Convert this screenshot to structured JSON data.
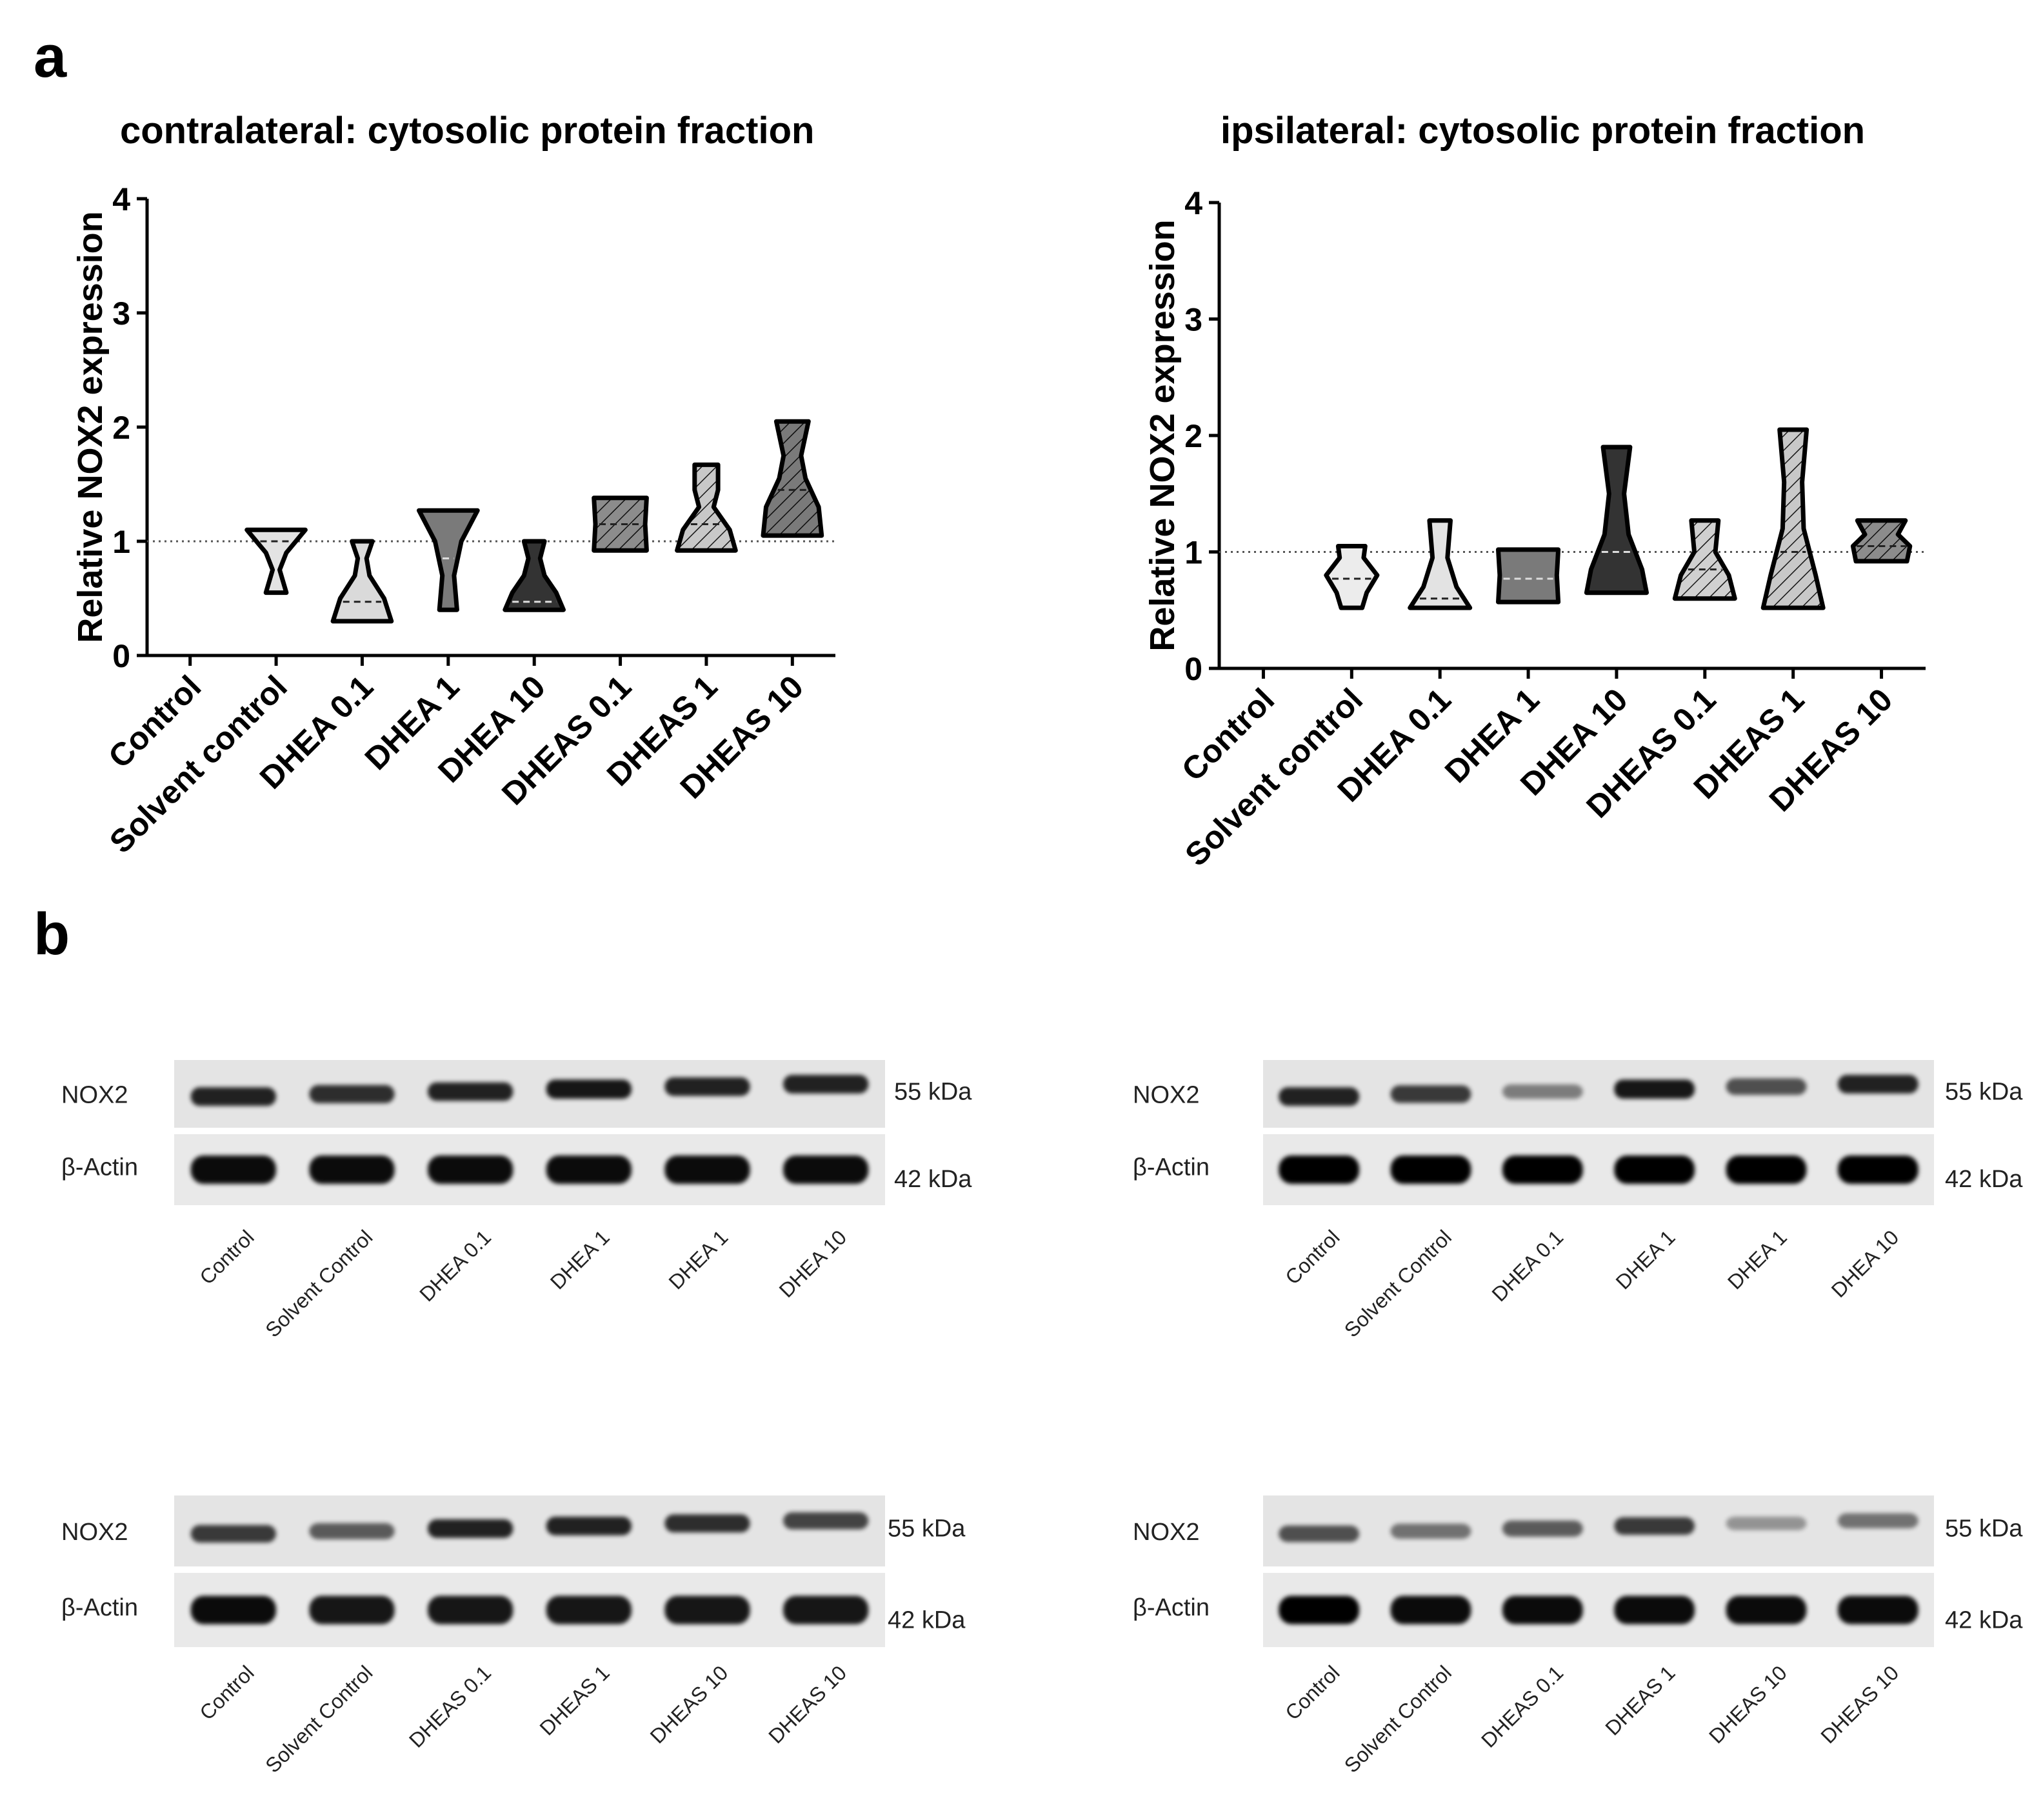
{
  "panel_a_letter": "a",
  "panel_b_letter": "b",
  "chart_data": [
    {
      "type": "violin",
      "title": "contralateral: cytosolic protein fraction",
      "ylabel": "Relative NOX2 expression",
      "xlabel": "",
      "ylim": [
        0,
        4
      ],
      "yticks": [
        0,
        1,
        2,
        3,
        4
      ],
      "reference_line": 1,
      "categories": [
        "Control",
        "Solvent control",
        "DHEA 0.1",
        "DHEA 1",
        "DHEA 10",
        "DHEAS 0.1",
        "DHEAS 1",
        "DHEAS 10"
      ],
      "series": [
        {
          "name": "Control",
          "fill": "none",
          "min": null,
          "max": null,
          "median": null,
          "profile": []
        },
        {
          "name": "Solvent control",
          "fill": "#e3e3e3",
          "hatch": false,
          "min": 0.55,
          "max": 1.1,
          "median": 1.0,
          "profile": [
            [
              0.55,
              0.35
            ],
            [
              0.75,
              0.12
            ],
            [
              0.9,
              0.35
            ],
            [
              1.1,
              1.0
            ]
          ]
        },
        {
          "name": "DHEA 0.1",
          "fill": "#dadada",
          "hatch": false,
          "min": 0.3,
          "max": 1.0,
          "median": 0.47,
          "profile": [
            [
              0.3,
              1.0
            ],
            [
              0.5,
              0.75
            ],
            [
              0.7,
              0.25
            ],
            [
              0.85,
              0.15
            ],
            [
              1.0,
              0.35
            ]
          ]
        },
        {
          "name": "DHEA 1",
          "fill": "#7a7a7a",
          "hatch": false,
          "min": 0.4,
          "max": 1.27,
          "median": 0.85,
          "profile": [
            [
              0.4,
              0.3
            ],
            [
              0.7,
              0.2
            ],
            [
              1.0,
              0.45
            ],
            [
              1.27,
              1.0
            ]
          ]
        },
        {
          "name": "DHEA 10",
          "fill": "#333333",
          "hatch": false,
          "min": 0.4,
          "max": 1.0,
          "median": 0.47,
          "profile": [
            [
              0.4,
              1.0
            ],
            [
              0.55,
              0.75
            ],
            [
              0.7,
              0.35
            ],
            [
              0.85,
              0.2
            ],
            [
              1.0,
              0.35
            ]
          ]
        },
        {
          "name": "DHEAS 0.1",
          "fill": "#8c8c8c",
          "hatch": true,
          "min": 0.92,
          "max": 1.38,
          "median": 1.15,
          "profile": [
            [
              0.92,
              0.9
            ],
            [
              1.15,
              0.85
            ],
            [
              1.38,
              0.9
            ]
          ]
        },
        {
          "name": "DHEAS 1",
          "fill": "#c8c8c8",
          "hatch": true,
          "min": 0.92,
          "max": 1.67,
          "median": 1.15,
          "profile": [
            [
              0.92,
              1.0
            ],
            [
              1.1,
              0.8
            ],
            [
              1.3,
              0.25
            ],
            [
              1.45,
              0.4
            ],
            [
              1.67,
              0.4
            ]
          ]
        },
        {
          "name": "DHEAS 10",
          "fill": "#7a7a7a",
          "hatch": true,
          "min": 1.05,
          "max": 2.05,
          "median": 1.45,
          "profile": [
            [
              1.05,
              1.0
            ],
            [
              1.3,
              0.9
            ],
            [
              1.55,
              0.45
            ],
            [
              1.75,
              0.3
            ],
            [
              2.05,
              0.55
            ]
          ]
        }
      ]
    },
    {
      "type": "violin",
      "title": "ipsilateral: cytosolic protein fraction",
      "ylabel": "Relative NOX2 expression",
      "xlabel": "",
      "ylim": [
        0,
        4
      ],
      "yticks": [
        0,
        1,
        2,
        3,
        4
      ],
      "reference_line": 1,
      "categories": [
        "Control",
        "Solvent control",
        "DHEA 0.1",
        "DHEA 1",
        "DHEA 10",
        "DHEAS 0.1",
        "DHEAS 1",
        "DHEAS 10"
      ],
      "series": [
        {
          "name": "Control",
          "fill": "none",
          "min": null,
          "max": null,
          "median": null,
          "profile": []
        },
        {
          "name": "Solvent control",
          "fill": "#ececec",
          "hatch": false,
          "min": 0.52,
          "max": 1.05,
          "median": 0.77,
          "profile": [
            [
              0.52,
              0.35
            ],
            [
              0.65,
              0.5
            ],
            [
              0.8,
              0.85
            ],
            [
              0.95,
              0.4
            ],
            [
              1.05,
              0.45
            ]
          ]
        },
        {
          "name": "DHEA 0.1",
          "fill": "#e3e3e3",
          "hatch": false,
          "min": 0.52,
          "max": 1.27,
          "median": 0.6,
          "profile": [
            [
              0.52,
              1.0
            ],
            [
              0.7,
              0.55
            ],
            [
              0.95,
              0.25
            ],
            [
              1.27,
              0.35
            ]
          ]
        },
        {
          "name": "DHEA 1",
          "fill": "#7a7a7a",
          "hatch": false,
          "min": 0.57,
          "max": 1.02,
          "median": 0.77,
          "profile": [
            [
              0.57,
              1.0
            ],
            [
              0.8,
              0.95
            ],
            [
              1.02,
              1.0
            ]
          ]
        },
        {
          "name": "DHEA 10",
          "fill": "#333333",
          "hatch": false,
          "min": 0.65,
          "max": 1.9,
          "median": 1.0,
          "profile": [
            [
              0.65,
              1.0
            ],
            [
              0.85,
              0.85
            ],
            [
              1.15,
              0.4
            ],
            [
              1.5,
              0.25
            ],
            [
              1.9,
              0.45
            ]
          ]
        },
        {
          "name": "DHEAS 0.1",
          "fill": "#d0d0d0",
          "hatch": true,
          "min": 0.6,
          "max": 1.27,
          "median": 0.85,
          "profile": [
            [
              0.6,
              1.0
            ],
            [
              0.8,
              0.8
            ],
            [
              1.0,
              0.35
            ],
            [
              1.27,
              0.45
            ]
          ]
        },
        {
          "name": "DHEAS 1",
          "fill": "#c8c8c8",
          "hatch": true,
          "min": 0.52,
          "max": 2.05,
          "median": 1.0,
          "profile": [
            [
              0.52,
              1.0
            ],
            [
              0.8,
              0.75
            ],
            [
              1.2,
              0.35
            ],
            [
              1.6,
              0.3
            ],
            [
              2.05,
              0.45
            ]
          ]
        },
        {
          "name": "DHEAS 10",
          "fill": "#8c8c8c",
          "hatch": true,
          "min": 0.92,
          "max": 1.27,
          "median": 1.05,
          "profile": [
            [
              0.92,
              0.85
            ],
            [
              1.05,
              0.95
            ],
            [
              1.15,
              0.55
            ],
            [
              1.27,
              0.8
            ]
          ]
        }
      ]
    }
  ],
  "blots": [
    {
      "nox2_label": "NOX2",
      "actin_label": "β-Actin",
      "nox2_kda": "55 kDa",
      "actin_kda": "42 kDa",
      "lanes": [
        "Control",
        "Solvent Control",
        "DHEA 0.1",
        "DHEA 1",
        "DHEA 1",
        "DHEA 10"
      ],
      "nox2_intensity": [
        0.85,
        0.8,
        0.85,
        0.9,
        0.85,
        0.85
      ],
      "actin_intensity": [
        0.95,
        0.95,
        0.95,
        0.95,
        0.95,
        0.95
      ]
    },
    {
      "nox2_label": "NOX2",
      "actin_label": "β-Actin",
      "nox2_kda": "55 kDa",
      "actin_kda": "42 kDa",
      "lanes": [
        "Control",
        "Solvent Control",
        "DHEA 0.1",
        "DHEA 1",
        "DHEA 1",
        "DHEA 10"
      ],
      "nox2_intensity": [
        0.85,
        0.75,
        0.45,
        0.9,
        0.65,
        0.85
      ],
      "actin_intensity": [
        1.0,
        1.0,
        1.0,
        1.0,
        1.0,
        1.0
      ]
    },
    {
      "nox2_label": "NOX2",
      "actin_label": "β-Actin",
      "nox2_kda": "55 kDa",
      "actin_kda": "42 kDa",
      "lanes": [
        "Control",
        "Solvent Control",
        "DHEAS 0.1",
        "DHEAS 1",
        "DHEAS 10",
        "DHEAS 10"
      ],
      "nox2_intensity": [
        0.75,
        0.6,
        0.85,
        0.85,
        0.8,
        0.7
      ],
      "actin_intensity": [
        0.95,
        0.9,
        0.9,
        0.9,
        0.9,
        0.9
      ]
    },
    {
      "nox2_label": "NOX2",
      "actin_label": "β-Actin",
      "nox2_kda": "55 kDa",
      "actin_kda": "42 kDa",
      "lanes": [
        "Control",
        "Solvent Control",
        "DHEAS 0.1",
        "DHEAS 1",
        "DHEAS 10",
        "DHEAS 10"
      ],
      "nox2_intensity": [
        0.65,
        0.5,
        0.6,
        0.75,
        0.35,
        0.5
      ],
      "actin_intensity": [
        1.0,
        0.95,
        0.95,
        0.95,
        0.95,
        0.95
      ]
    }
  ]
}
